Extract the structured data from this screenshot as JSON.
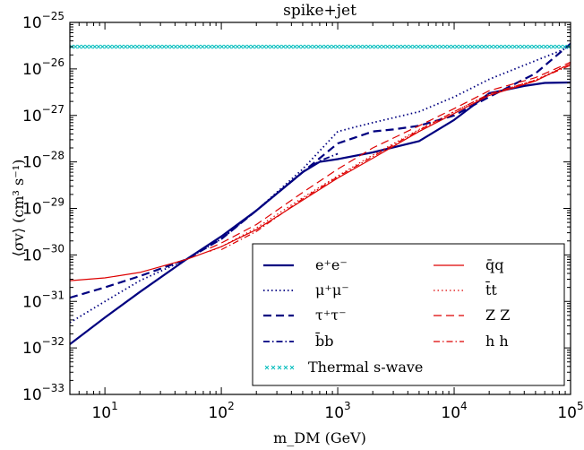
{
  "chart_data": {
    "type": "line",
    "title": "spike+jet",
    "xlabel": "m_DM (GeV)",
    "ylabel": "⟨σv⟩ (cm³ s⁻¹)",
    "xscale": "log",
    "yscale": "log",
    "xlim": [
      5,
      100000
    ],
    "ylim": [
      1e-33,
      1e-25
    ],
    "x_ticks": [
      {
        "value": 10,
        "base": "10",
        "exp": "1"
      },
      {
        "value": 100,
        "base": "10",
        "exp": "2"
      },
      {
        "value": 1000,
        "base": "10",
        "exp": "3"
      },
      {
        "value": 10000,
        "base": "10",
        "exp": "4"
      },
      {
        "value": 100000,
        "base": "10",
        "exp": "5"
      }
    ],
    "y_ticks": [
      {
        "value": 1e-33,
        "base": "10",
        "exp": "−33"
      },
      {
        "value": 1e-32,
        "base": "10",
        "exp": "−32"
      },
      {
        "value": 1e-31,
        "base": "10",
        "exp": "−31"
      },
      {
        "value": 1e-30,
        "base": "10",
        "exp": "−30"
      },
      {
        "value": 1e-29,
        "base": "10",
        "exp": "−29"
      },
      {
        "value": 1e-28,
        "base": "10",
        "exp": "−28"
      },
      {
        "value": 1e-27,
        "base": "10",
        "exp": "−27"
      },
      {
        "value": 1e-26,
        "base": "10",
        "exp": "−26"
      },
      {
        "value": 1e-25,
        "base": "10",
        "exp": "−25"
      }
    ],
    "grid": false,
    "legend_position": "lower-right",
    "series": [
      {
        "name": "e⁺e⁻",
        "color": "#000080",
        "style": "solid",
        "width": 2.2,
        "x": [
          5,
          10,
          20,
          50,
          100,
          200,
          500,
          700,
          1000,
          2000,
          5000,
          10000,
          20000,
          40000,
          60000,
          100000
        ],
        "y": [
          1.2e-32,
          4.5e-32,
          1.6e-31,
          8e-31,
          2.5e-30,
          9e-30,
          6e-29,
          1e-28,
          1.15e-28,
          1.6e-28,
          2.8e-28,
          8e-28,
          3e-27,
          4.3e-27,
          5e-27,
          5.1e-27
        ]
      },
      {
        "name": "μ⁺μ⁻",
        "color": "#000080",
        "style": "dotted",
        "width": 1.8,
        "x": [
          5,
          10,
          20,
          50,
          100,
          200,
          500,
          1000,
          2000,
          5000,
          10000,
          20000,
          50000,
          100000
        ],
        "y": [
          3.5e-32,
          1e-31,
          2.8e-31,
          8e-31,
          2.2e-30,
          9e-30,
          7e-29,
          4.5e-28,
          7e-28,
          1.2e-27,
          2.5e-27,
          6e-27,
          1.5e-26,
          3e-26
        ]
      },
      {
        "name": "τ⁺τ⁻",
        "color": "#000080",
        "style": "dashed",
        "width": 2.2,
        "x": [
          5,
          10,
          20,
          50,
          100,
          200,
          500,
          1000,
          2000,
          3000,
          5000,
          10000,
          20000,
          50000,
          100000
        ],
        "y": [
          1.2e-31,
          2e-31,
          3.5e-31,
          8e-31,
          2.2e-30,
          9e-30,
          6e-29,
          2.5e-28,
          4.5e-28,
          5e-28,
          6e-28,
          1e-27,
          2.5e-27,
          8e-27,
          3.5e-26
        ]
      },
      {
        "name": "b̄b",
        "color": "#000080",
        "style": "dashdot",
        "width": 1.8,
        "x": [
          100,
          200,
          500,
          700,
          1000
        ],
        "y": [
          2.2e-30,
          9e-30,
          6e-29,
          1.05e-28,
          1.5e-28
        ]
      },
      {
        "name": "q̄q",
        "color": "#dd0000",
        "style": "solid",
        "width": 1.2,
        "x": [
          5,
          10,
          20,
          50,
          100,
          200,
          500,
          1000,
          2000,
          5000,
          10000,
          20000,
          50000,
          100000
        ],
        "y": [
          2.8e-31,
          3.2e-31,
          4.2e-31,
          8e-31,
          1.5e-30,
          3.5e-30,
          1.5e-29,
          4.5e-29,
          1.2e-28,
          4.5e-28,
          1.1e-27,
          2.7e-27,
          5.5e-27,
          1.3e-26
        ]
      },
      {
        "name": "t̄t",
        "color": "#dd0000",
        "style": "dotted",
        "width": 1.2,
        "x": [
          80,
          100,
          200,
          500,
          1000,
          2000,
          5000,
          10000,
          20000,
          50000,
          100000
        ],
        "y": [
          1.2e-30,
          1.5e-30,
          3.8e-30,
          1.7e-29,
          5e-29,
          1.4e-28,
          5e-28,
          1.2e-27,
          2.9e-27,
          5.8e-27,
          1.3e-26
        ]
      },
      {
        "name": "Z Z",
        "color": "#dd0000",
        "style": "dashed",
        "width": 1.2,
        "x": [
          80,
          100,
          200,
          500,
          1000,
          2000,
          5000,
          10000,
          20000,
          50000,
          100000
        ],
        "y": [
          1.4e-30,
          1.8e-30,
          4.5e-30,
          2.2e-29,
          7e-29,
          2e-28,
          6e-28,
          1.4e-27,
          3.4e-27,
          6.5e-27,
          1.4e-26
        ]
      },
      {
        "name": "h h",
        "color": "#dd0000",
        "style": "dashdot",
        "width": 1.2,
        "x": [
          100,
          200,
          500,
          1000,
          2000,
          5000,
          10000,
          20000,
          50000,
          100000
        ],
        "y": [
          1.3e-30,
          3.2e-30,
          1.6e-29,
          4.8e-29,
          1.3e-28,
          4.8e-28,
          1.2e-27,
          2.9e-27,
          5.7e-27,
          1.2e-26
        ]
      },
      {
        "name": "Thermal s-wave",
        "color": "#00bcbc",
        "style": "xmarks",
        "width": 1,
        "x": [
          5,
          100000
        ],
        "y": [
          3e-26,
          3e-26
        ]
      }
    ]
  }
}
